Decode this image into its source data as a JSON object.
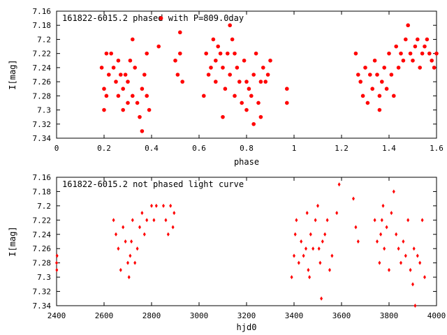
{
  "chart_data": [
    {
      "type": "scatter",
      "title": "161822-6015.2 phased with P=809.0day",
      "xlabel": "phase",
      "ylabel": "I[mag]",
      "xlim": [
        0,
        1.6
      ],
      "ylim": [
        7.34,
        7.16
      ],
      "y_inverted": true,
      "grid": false,
      "legend": "none",
      "marker": "filled-circle",
      "color": "#ff0000",
      "x_ticks": [
        "0",
        "0.2",
        "0.4",
        "0.6",
        "0.8",
        "1",
        "1.2",
        "1.4",
        "1.6"
      ],
      "y_ticks": [
        "7.16",
        "7.18",
        "7.2",
        "7.22",
        "7.24",
        "7.26",
        "7.28",
        "7.3",
        "7.32",
        "7.34"
      ],
      "points": [
        [
          0.19,
          7.24
        ],
        [
          0.2,
          7.27
        ],
        [
          0.2,
          7.3
        ],
        [
          0.21,
          7.22
        ],
        [
          0.21,
          7.28
        ],
        [
          0.22,
          7.25
        ],
        [
          0.23,
          7.22
        ],
        [
          0.24,
          7.24
        ],
        [
          0.25,
          7.26
        ],
        [
          0.26,
          7.28
        ],
        [
          0.26,
          7.23
        ],
        [
          0.27,
          7.25
        ],
        [
          0.28,
          7.27
        ],
        [
          0.28,
          7.3
        ],
        [
          0.29,
          7.25
        ],
        [
          0.3,
          7.26
        ],
        [
          0.3,
          7.29
        ],
        [
          0.31,
          7.23
        ],
        [
          0.32,
          7.2
        ],
        [
          0.32,
          7.28
        ],
        [
          0.33,
          7.24
        ],
        [
          0.34,
          7.29
        ],
        [
          0.35,
          7.31
        ],
        [
          0.36,
          7.33
        ],
        [
          0.36,
          7.27
        ],
        [
          0.37,
          7.25
        ],
        [
          0.38,
          7.22
        ],
        [
          0.38,
          7.28
        ],
        [
          0.39,
          7.3
        ],
        [
          0.43,
          7.21
        ],
        [
          0.44,
          7.17
        ],
        [
          0.5,
          7.23
        ],
        [
          0.51,
          7.25
        ],
        [
          0.52,
          7.19
        ],
        [
          0.52,
          7.22
        ],
        [
          0.53,
          7.26
        ],
        [
          0.62,
          7.28
        ],
        [
          0.63,
          7.22
        ],
        [
          0.64,
          7.25
        ],
        [
          0.65,
          7.24
        ],
        [
          0.66,
          7.2
        ],
        [
          0.67,
          7.23
        ],
        [
          0.67,
          7.26
        ],
        [
          0.68,
          7.21
        ],
        [
          0.69,
          7.22
        ],
        [
          0.7,
          7.24
        ],
        [
          0.7,
          7.31
        ],
        [
          0.71,
          7.27
        ],
        [
          0.72,
          7.22
        ],
        [
          0.73,
          7.18
        ],
        [
          0.73,
          7.25
        ],
        [
          0.74,
          7.2
        ],
        [
          0.75,
          7.22
        ],
        [
          0.75,
          7.28
        ],
        [
          0.76,
          7.24
        ],
        [
          0.77,
          7.26
        ],
        [
          0.78,
          7.29
        ],
        [
          0.79,
          7.23
        ],
        [
          0.8,
          7.26
        ],
        [
          0.8,
          7.3
        ],
        [
          0.81,
          7.27
        ],
        [
          0.82,
          7.28
        ],
        [
          0.83,
          7.32
        ],
        [
          0.83,
          7.25
        ],
        [
          0.84,
          7.22
        ],
        [
          0.85,
          7.29
        ],
        [
          0.86,
          7.26
        ],
        [
          0.86,
          7.31
        ],
        [
          0.87,
          7.24
        ],
        [
          0.88,
          7.26
        ],
        [
          0.89,
          7.25
        ],
        [
          0.9,
          7.23
        ],
        [
          0.97,
          7.27
        ],
        [
          0.97,
          7.29
        ],
        [
          1.26,
          7.22
        ],
        [
          1.27,
          7.25
        ],
        [
          1.28,
          7.26
        ],
        [
          1.29,
          7.28
        ],
        [
          1.3,
          7.24
        ],
        [
          1.31,
          7.29
        ],
        [
          1.32,
          7.25
        ],
        [
          1.33,
          7.27
        ],
        [
          1.34,
          7.23
        ],
        [
          1.35,
          7.25
        ],
        [
          1.36,
          7.28
        ],
        [
          1.36,
          7.3
        ],
        [
          1.37,
          7.26
        ],
        [
          1.38,
          7.24
        ],
        [
          1.39,
          7.27
        ],
        [
          1.4,
          7.22
        ],
        [
          1.41,
          7.25
        ],
        [
          1.42,
          7.28
        ],
        [
          1.43,
          7.21
        ],
        [
          1.44,
          7.24
        ],
        [
          1.45,
          7.22
        ],
        [
          1.46,
          7.23
        ],
        [
          1.47,
          7.2
        ],
        [
          1.48,
          7.18
        ],
        [
          1.49,
          7.22
        ],
        [
          1.5,
          7.23
        ],
        [
          1.51,
          7.21
        ],
        [
          1.52,
          7.2
        ],
        [
          1.53,
          7.24
        ],
        [
          1.54,
          7.22
        ],
        [
          1.55,
          7.21
        ],
        [
          1.56,
          7.2
        ],
        [
          1.57,
          7.22
        ],
        [
          1.58,
          7.23
        ],
        [
          1.59,
          7.24
        ],
        [
          1.6,
          7.22
        ]
      ]
    },
    {
      "type": "scatter",
      "title": "161822-6015.2 not phased light curve",
      "xlabel": "hjd0",
      "ylabel": "I[mag]",
      "xlim": [
        2400,
        4000
      ],
      "ylim": [
        7.34,
        7.16
      ],
      "y_inverted": true,
      "grid": false,
      "legend": "none",
      "marker": "small-diamond",
      "color": "#ff0000",
      "x_ticks": [
        "2400",
        "2600",
        "2800",
        "3000",
        "3200",
        "3400",
        "3600",
        "3800",
        "4000"
      ],
      "y_ticks": [
        "7.16",
        "7.18",
        "7.2",
        "7.22",
        "7.24",
        "7.26",
        "7.28",
        "7.3",
        "7.32",
        "7.34"
      ],
      "points": [
        [
          2400,
          7.28
        ],
        [
          2401,
          7.29
        ],
        [
          2402,
          7.27
        ],
        [
          2640,
          7.22
        ],
        [
          2650,
          7.24
        ],
        [
          2660,
          7.26
        ],
        [
          2670,
          7.29
        ],
        [
          2680,
          7.23
        ],
        [
          2690,
          7.25
        ],
        [
          2700,
          7.28
        ],
        [
          2705,
          7.3
        ],
        [
          2710,
          7.27
        ],
        [
          2715,
          7.25
        ],
        [
          2720,
          7.22
        ],
        [
          2730,
          7.28
        ],
        [
          2740,
          7.26
        ],
        [
          2750,
          7.23
        ],
        [
          2760,
          7.21
        ],
        [
          2770,
          7.24
        ],
        [
          2780,
          7.22
        ],
        [
          2800,
          7.2
        ],
        [
          2810,
          7.22
        ],
        [
          2820,
          7.2
        ],
        [
          2850,
          7.2
        ],
        [
          2860,
          7.22
        ],
        [
          2870,
          7.24
        ],
        [
          2880,
          7.2
        ],
        [
          2890,
          7.23
        ],
        [
          2895,
          7.21
        ],
        [
          3390,
          7.3
        ],
        [
          3400,
          7.27
        ],
        [
          3405,
          7.24
        ],
        [
          3410,
          7.22
        ],
        [
          3420,
          7.28
        ],
        [
          3430,
          7.25
        ],
        [
          3440,
          7.27
        ],
        [
          3450,
          7.26
        ],
        [
          3455,
          7.21
        ],
        [
          3460,
          7.29
        ],
        [
          3465,
          7.3
        ],
        [
          3470,
          7.24
        ],
        [
          3480,
          7.26
        ],
        [
          3490,
          7.22
        ],
        [
          3500,
          7.2
        ],
        [
          3505,
          7.26
        ],
        [
          3510,
          7.28
        ],
        [
          3515,
          7.33
        ],
        [
          3520,
          7.25
        ],
        [
          3530,
          7.24
        ],
        [
          3540,
          7.22
        ],
        [
          3550,
          7.29
        ],
        [
          3560,
          7.27
        ],
        [
          3580,
          7.21
        ],
        [
          3590,
          7.17
        ],
        [
          3650,
          7.19
        ],
        [
          3660,
          7.23
        ],
        [
          3670,
          7.25
        ],
        [
          3740,
          7.22
        ],
        [
          3750,
          7.25
        ],
        [
          3760,
          7.28
        ],
        [
          3765,
          7.24
        ],
        [
          3770,
          7.22
        ],
        [
          3775,
          7.2
        ],
        [
          3780,
          7.26
        ],
        [
          3790,
          7.23
        ],
        [
          3800,
          7.29
        ],
        [
          3810,
          7.21
        ],
        [
          3820,
          7.18
        ],
        [
          3830,
          7.24
        ],
        [
          3840,
          7.26
        ],
        [
          3850,
          7.28
        ],
        [
          3860,
          7.25
        ],
        [
          3870,
          7.27
        ],
        [
          3880,
          7.22
        ],
        [
          3890,
          7.29
        ],
        [
          3900,
          7.31
        ],
        [
          3905,
          7.26
        ],
        [
          3910,
          7.34
        ],
        [
          3920,
          7.27
        ],
        [
          3930,
          7.28
        ],
        [
          3940,
          7.22
        ],
        [
          3950,
          7.3
        ]
      ]
    }
  ]
}
